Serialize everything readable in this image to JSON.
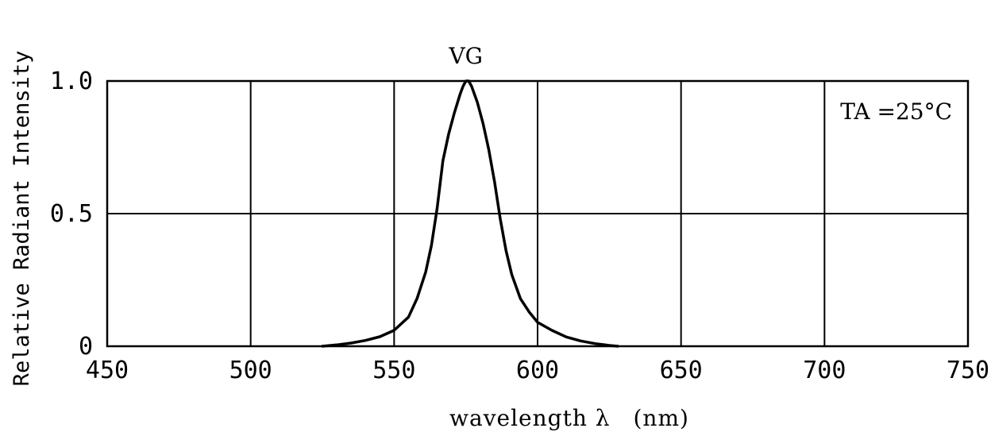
{
  "chart_data": {
    "type": "line",
    "xlabel": "wavelength λ　(nm)",
    "ylabel": "Relative Radiant Intensity",
    "xlim": [
      450,
      750
    ],
    "ylim": [
      0,
      1.0
    ],
    "x_ticks": [
      450,
      500,
      550,
      600,
      650,
      700,
      750
    ],
    "x_tick_labels": [
      "450",
      "500",
      "550",
      "600",
      "650",
      "700",
      "750"
    ],
    "y_ticks": [
      0,
      0.5,
      1.0
    ],
    "y_tick_labels": [
      "0",
      "0.5",
      "1.0"
    ],
    "grid": true,
    "annotation": "TA =25°C",
    "series": [
      {
        "name": "VG",
        "x": [
          525,
          530,
          535,
          540,
          545,
          550,
          555,
          558,
          561,
          563,
          565,
          567,
          569,
          571,
          573,
          574,
          575,
          576,
          577,
          579,
          581,
          583,
          585,
          587,
          589,
          591,
          594,
          597,
          600,
          605,
          610,
          615,
          620,
          625,
          628
        ],
        "y": [
          0.0,
          0.005,
          0.012,
          0.022,
          0.036,
          0.06,
          0.11,
          0.18,
          0.28,
          0.38,
          0.52,
          0.7,
          0.8,
          0.88,
          0.95,
          0.98,
          1.0,
          1.0,
          0.98,
          0.92,
          0.84,
          0.74,
          0.62,
          0.48,
          0.36,
          0.27,
          0.18,
          0.13,
          0.09,
          0.06,
          0.035,
          0.02,
          0.01,
          0.003,
          0.0
        ]
      }
    ]
  }
}
